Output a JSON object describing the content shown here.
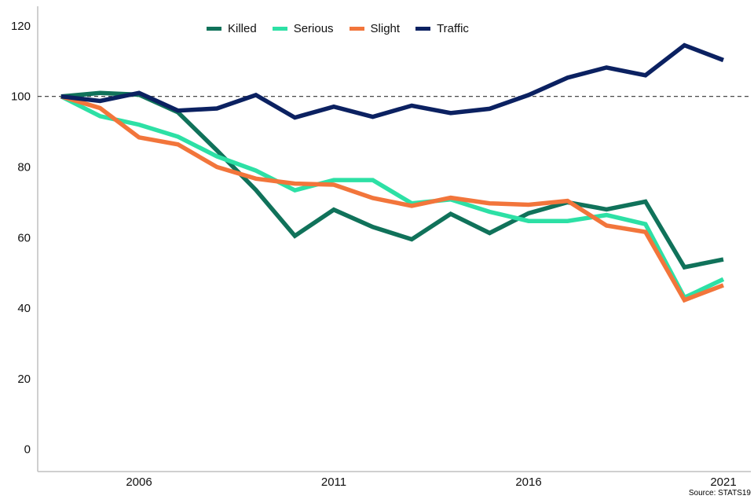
{
  "chart_data": {
    "type": "line",
    "title": "",
    "xlabel": "",
    "ylabel": "",
    "x": [
      2004,
      2005,
      2006,
      2007,
      2008,
      2009,
      2010,
      2011,
      2012,
      2013,
      2014,
      2015,
      2016,
      2017,
      2018,
      2019,
      2020,
      2021
    ],
    "xticks": [
      2006,
      2011,
      2016,
      2021
    ],
    "yticks": [
      0,
      20,
      40,
      60,
      80,
      100,
      120
    ],
    "xlim": [
      2003.4,
      2021.8
    ],
    "ylim": [
      0,
      126
    ],
    "grid": "off",
    "legend_position": "top-center",
    "reference_line_y": 100,
    "series": [
      {
        "name": "Killed",
        "color": "#10725a",
        "values": [
          100,
          101,
          100.5,
          95.5,
          84.7,
          73.5,
          60.5,
          67.9,
          63.0,
          59.5,
          66.7,
          61.3,
          66.9,
          70.0,
          68.0,
          70.2,
          51.6,
          53.8
        ]
      },
      {
        "name": "Serious",
        "color": "#2de0a5",
        "values": [
          100,
          94.4,
          92.0,
          88.6,
          83.0,
          79.0,
          73.4,
          76.3,
          76.3,
          69.7,
          70.8,
          67.3,
          64.7,
          64.7,
          66.4,
          63.8,
          43.0,
          48.2
        ]
      },
      {
        "name": "Slight",
        "color": "#f2753b",
        "values": [
          100,
          96.7,
          88.4,
          86.4,
          80.0,
          76.7,
          75.3,
          75.0,
          71.2,
          69.0,
          71.3,
          69.7,
          69.3,
          70.4,
          63.4,
          61.6,
          42.3,
          46.5
        ]
      },
      {
        "name": "Traffic",
        "color": "#0b2161",
        "values": [
          100,
          98.7,
          101.0,
          96.0,
          96.6,
          100.4,
          94.0,
          97.1,
          94.2,
          97.4,
          95.3,
          96.5,
          100.4,
          105.3,
          108.2,
          106.0,
          114.5,
          110.3
        ]
      }
    ]
  },
  "source": {
    "label": "Source: STATS19"
  },
  "colors": {
    "axis": "#bfbfbf",
    "reference_line": "#333333",
    "tick_text": "#111111"
  }
}
